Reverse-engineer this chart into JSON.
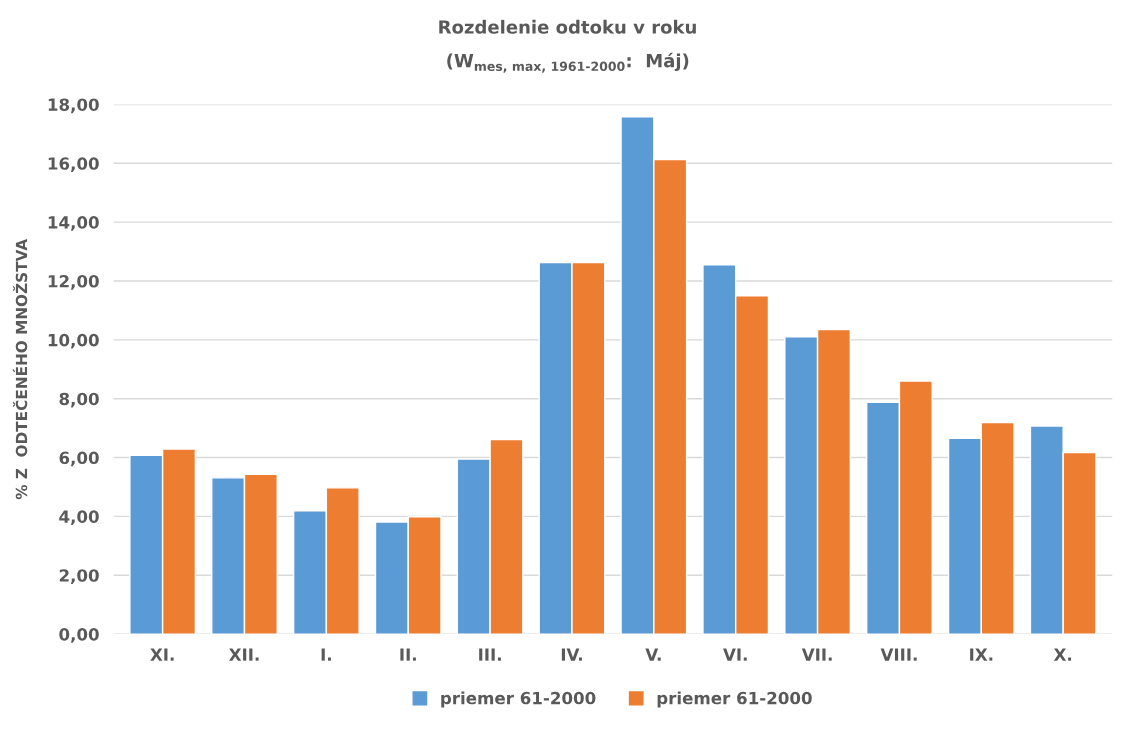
{
  "chart_data": {
    "type": "bar",
    "title": "Rozdelenie odtoku v roku",
    "subtitle": "(W$_{mes, max, 1961-2000}$:  Máj)",
    "ylabel": "% Z  ODTEČENÉHO MNOŽSTVA",
    "categories": [
      "XI.",
      "XII.",
      "I.",
      "II.",
      "III.",
      "IV.",
      "V.",
      "VI.",
      "VII.",
      "VIII.",
      "IX.",
      "X."
    ],
    "series": [
      {
        "name": "priemer 61-2000",
        "color": "#5b9bd5",
        "values": [
          6.08,
          5.31,
          4.19,
          3.81,
          5.95,
          12.63,
          17.58,
          12.55,
          10.1,
          7.88,
          6.65,
          7.07
        ]
      },
      {
        "name": "priemer 61-2000",
        "color": "#ed7d31",
        "values": [
          6.29,
          5.43,
          4.97,
          3.99,
          6.61,
          12.63,
          16.13,
          11.5,
          10.35,
          8.6,
          7.19,
          6.17
        ]
      }
    ],
    "ylim": [
      0,
      18
    ],
    "yticks": [
      {
        "value": 0,
        "label": "0,00"
      },
      {
        "value": 2,
        "label": "2,00"
      },
      {
        "value": 4,
        "label": "4,00"
      },
      {
        "value": 6,
        "label": "6,00"
      },
      {
        "value": 8,
        "label": "8,00"
      },
      {
        "value": 10,
        "label": "10,00"
      },
      {
        "value": 12,
        "label": "12,00"
      },
      {
        "value": 14,
        "label": "14,00"
      },
      {
        "value": 16,
        "label": "16,00"
      },
      {
        "value": 18,
        "label": "18,00"
      }
    ],
    "grid": "y",
    "legend": "bottom"
  }
}
